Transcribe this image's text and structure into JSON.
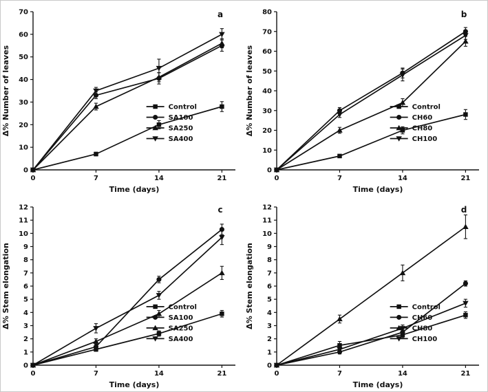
{
  "figure_title": "",
  "chart_data": [
    {
      "type": "line",
      "panel_label": "a",
      "xlabel": "Time (days)",
      "ylabel": "Δ% Number of leaves",
      "x": [
        0,
        7,
        14,
        21
      ],
      "xlim": [
        0,
        22.5
      ],
      "xticks": [
        0,
        7,
        14,
        21
      ],
      "ylim": [
        0,
        70
      ],
      "ytick_step": 10,
      "grid": false,
      "legend_position": "inside lower right",
      "legend_pos": {
        "x": 0.56,
        "y": 0.6
      },
      "line_color": "#111111",
      "series": [
        {
          "name": "Control",
          "marker": "square",
          "values": [
            0,
            7,
            20,
            28
          ],
          "errors": [
            0,
            0.8,
            1.8,
            2.2
          ]
        },
        {
          "name": "SA100",
          "marker": "circle",
          "values": [
            0,
            33,
            40.5,
            55
          ],
          "errors": [
            0,
            1.5,
            2.5,
            2.5
          ]
        },
        {
          "name": "SA250",
          "marker": "triangle-up",
          "values": [
            0,
            28,
            41,
            56
          ],
          "errors": [
            0,
            1.5,
            2.0,
            2.0
          ]
        },
        {
          "name": "SA400",
          "marker": "triangle-down",
          "values": [
            0,
            35,
            45,
            60
          ],
          "errors": [
            0,
            1.5,
            4.0,
            2.5
          ]
        }
      ]
    },
    {
      "type": "line",
      "panel_label": "b",
      "xlabel": "Time (days)",
      "ylabel": "Δ% Number of leaves",
      "x": [
        0,
        7,
        14,
        21
      ],
      "xlim": [
        0,
        22.5
      ],
      "xticks": [
        0,
        7,
        14,
        21
      ],
      "ylim": [
        0,
        80
      ],
      "ytick_step": 10,
      "grid": false,
      "legend_position": "inside lower right",
      "legend_pos": {
        "x": 0.56,
        "y": 0.6
      },
      "line_color": "#111111",
      "series": [
        {
          "name": "Control",
          "marker": "square",
          "values": [
            0,
            7,
            20,
            28
          ],
          "errors": [
            0,
            0.8,
            1.8,
            2.5
          ]
        },
        {
          "name": "CH60",
          "marker": "circle",
          "values": [
            0,
            30,
            49,
            70
          ],
          "errors": [
            0,
            1.5,
            2.5,
            2.0
          ]
        },
        {
          "name": "CH80",
          "marker": "triangle-up",
          "values": [
            0,
            20,
            34,
            65
          ],
          "errors": [
            0,
            1.5,
            2.0,
            2.5
          ]
        },
        {
          "name": "CH100",
          "marker": "triangle-down",
          "values": [
            0,
            28,
            48,
            68
          ],
          "errors": [
            0,
            1.5,
            3.0,
            2.0
          ]
        }
      ]
    },
    {
      "type": "line",
      "panel_label": "c",
      "xlabel": "Time (days)",
      "ylabel": "Δ% Stem elongation",
      "x": [
        0,
        7,
        14,
        21
      ],
      "xlim": [
        0,
        22.5
      ],
      "xticks": [
        0,
        7,
        14,
        21
      ],
      "ylim": [
        0,
        12
      ],
      "ytick_step": 1,
      "grid": false,
      "legend_position": "inside lower right",
      "legend_pos": {
        "x": 0.56,
        "y": 0.63
      },
      "line_color": "#111111",
      "series": [
        {
          "name": "Control",
          "marker": "square",
          "values": [
            0,
            1.2,
            2.4,
            3.9
          ],
          "errors": [
            0,
            0.15,
            0.2,
            0.25
          ]
        },
        {
          "name": "SA100",
          "marker": "circle",
          "values": [
            0,
            1.4,
            6.5,
            10.3
          ],
          "errors": [
            0,
            0.2,
            0.25,
            0.4
          ]
        },
        {
          "name": "SA250",
          "marker": "triangle-up",
          "values": [
            0,
            1.8,
            3.9,
            7.0
          ],
          "errors": [
            0,
            0.2,
            0.25,
            0.5
          ]
        },
        {
          "name": "SA400",
          "marker": "triangle-down",
          "values": [
            0,
            2.8,
            5.3,
            9.7
          ],
          "errors": [
            0,
            0.35,
            0.3,
            0.55
          ]
        }
      ]
    },
    {
      "type": "line",
      "panel_label": "d",
      "xlabel": "Time (days)",
      "ylabel": "Δ% Stem elongation",
      "x": [
        0,
        7,
        14,
        21
      ],
      "xlim": [
        0,
        22.5
      ],
      "xticks": [
        0,
        7,
        14,
        21
      ],
      "ylim": [
        0,
        12
      ],
      "ytick_step": 1,
      "grid": false,
      "legend_position": "inside lower right",
      "legend_pos": {
        "x": 0.56,
        "y": 0.63
      },
      "line_color": "#111111",
      "series": [
        {
          "name": "Control",
          "marker": "square",
          "values": [
            0,
            1.5,
            2.3,
            3.8
          ],
          "errors": [
            0,
            0.3,
            0.2,
            0.25
          ]
        },
        {
          "name": "CH60",
          "marker": "circle",
          "values": [
            0,
            1.0,
            2.5,
            6.2
          ],
          "errors": [
            0,
            0.15,
            0.2,
            0.2
          ]
        },
        {
          "name": "CH80",
          "marker": "triangle-up",
          "values": [
            0,
            3.5,
            7.0,
            10.5
          ],
          "errors": [
            0,
            0.3,
            0.6,
            0.9
          ]
        },
        {
          "name": "CH100",
          "marker": "triangle-down",
          "values": [
            0,
            1.2,
            2.8,
            4.7
          ],
          "errors": [
            0,
            0.2,
            0.25,
            0.3
          ]
        }
      ]
    }
  ]
}
